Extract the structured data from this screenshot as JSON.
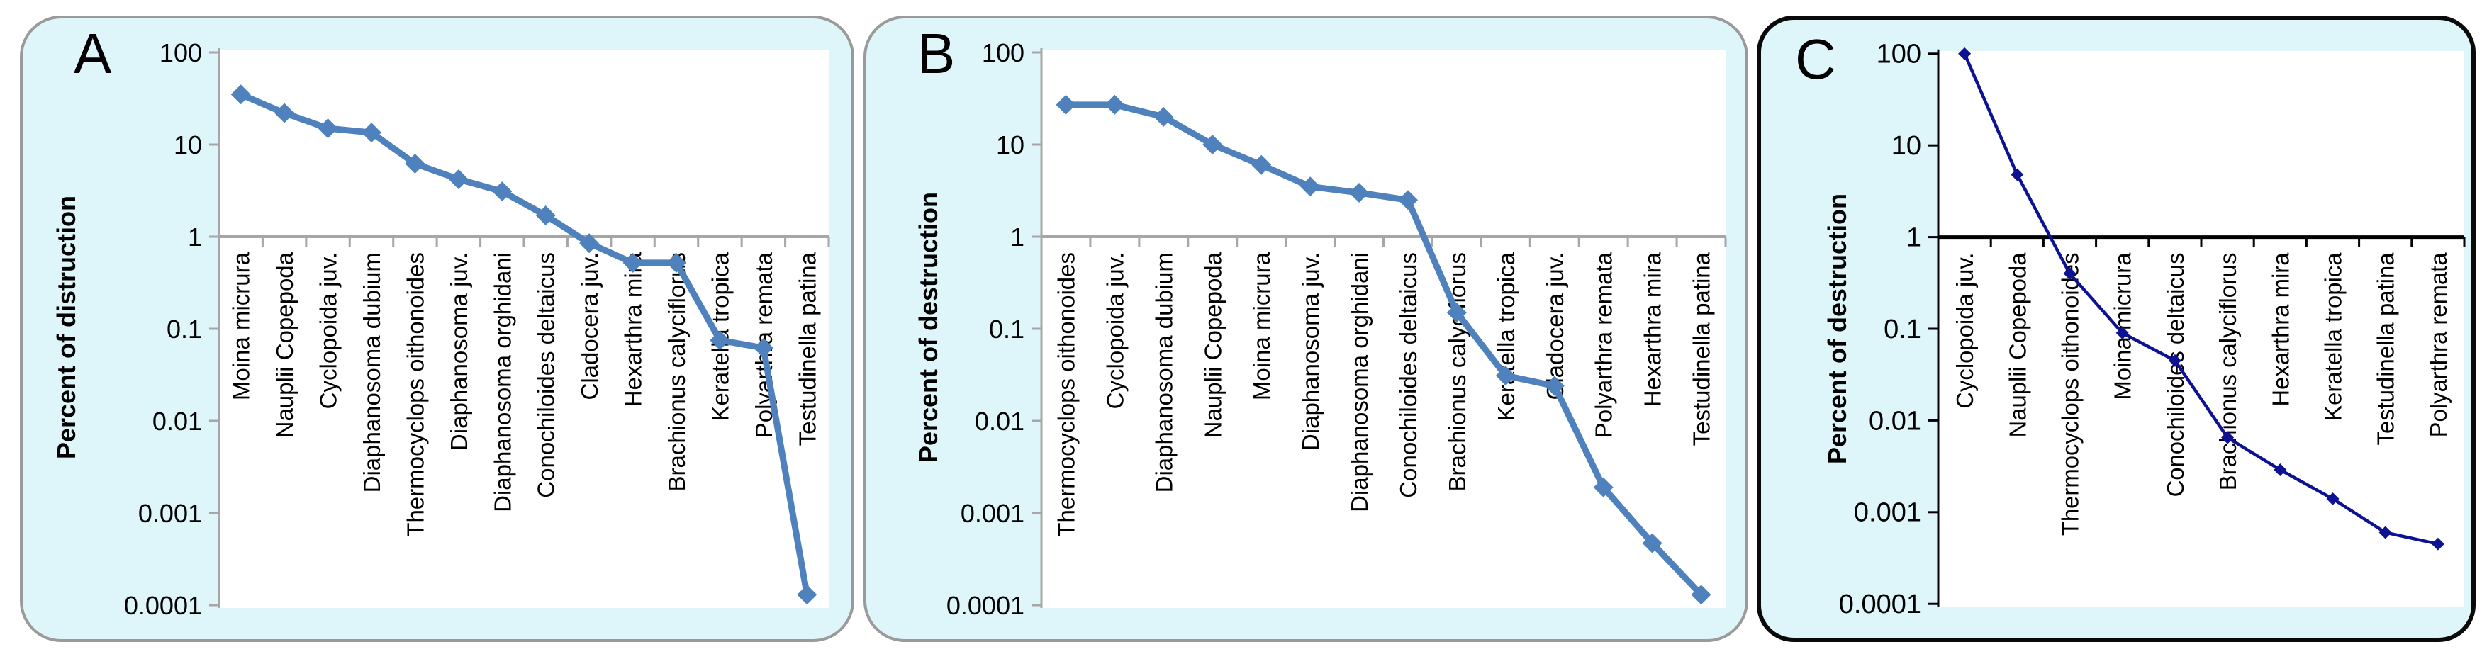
{
  "figure": {
    "background": "#ffffff",
    "panel_background": "#def6f9",
    "panel_border_ab": "#9a9a9a",
    "panel_border_c": "#0a0a0a"
  },
  "chart_data": [
    {
      "type": "line",
      "panel_label": "A",
      "ylabel": "Percent of distruction",
      "yscale": "log",
      "ylim": [
        0.0001,
        100
      ],
      "ytick_labels": [
        "100",
        "10",
        "1",
        "0.1",
        "0.01",
        "0.001",
        "0.0001"
      ],
      "grid": false,
      "legend": "none",
      "categories": [
        "Moina micrura",
        "Nauplii Copepoda",
        "Cyclopoida juv.",
        "Diaphanosoma dubium",
        "Thermocyclops oithonoides",
        "Diaphanosoma juv.",
        "Diaphanosoma orghidani",
        "Conochiloides deltaicus",
        "Cladocera juv.",
        "Hexarthra mira",
        "Brachionus calyciflorus",
        "Keratella tropica",
        "Polyarthra remata",
        "Testudinella patina"
      ],
      "values": [
        35,
        22,
        15,
        13.5,
        6.2,
        4.2,
        3.1,
        1.7,
        0.85,
        0.52,
        0.52,
        0.075,
        0.062,
        0.00013
      ],
      "line_color": "#4F81BD",
      "marker": "diamond",
      "marker_color": "#4F81BD",
      "axis_color": "#a6a6a6",
      "plot_background": "#ffffff",
      "text_color": "#000000"
    },
    {
      "type": "line",
      "panel_label": "B",
      "ylabel": "Percent of destruction",
      "yscale": "log",
      "ylim": [
        0.0001,
        100
      ],
      "ytick_labels": [
        "100",
        "10",
        "1",
        "0.1",
        "0.01",
        "0.001",
        "0.0001"
      ],
      "grid": false,
      "legend": "none",
      "categories": [
        "Thermocyclops oithonoides",
        "Cyclopoida juv.",
        "Diaphanosoma dubium",
        "Nauplii Copepoda",
        "Moina micrura",
        "Diaphanosoma juv.",
        "Diaphanosoma orghidani",
        "Conochiloides deltaicus",
        "Brachionus calyciflorus",
        "Keratella tropica",
        "Cladocera juv.",
        "Polyarthra remata",
        "Hexarthra mira",
        "Testudinella patina"
      ],
      "values": [
        27,
        27,
        20,
        10,
        6,
        3.5,
        3.0,
        2.5,
        0.15,
        0.031,
        0.024,
        0.0019,
        0.00047,
        0.00013
      ],
      "line_color": "#4F81BD",
      "marker": "diamond",
      "marker_color": "#4F81BD",
      "axis_color": "#a6a6a6",
      "plot_background": "#ffffff",
      "text_color": "#000000"
    },
    {
      "type": "line",
      "panel_label": "C",
      "ylabel": "Percent of destruction",
      "yscale": "log",
      "ylim": [
        0.0001,
        100
      ],
      "ytick_labels": [
        "100",
        "10",
        "1",
        "0.1",
        "0.01",
        "0.001",
        "0.0001"
      ],
      "grid": false,
      "legend": "none",
      "categories": [
        "Cyclopoida juv.",
        "Nauplii Copepoda",
        "Thermocyclops oithonoides",
        "Moina micrura",
        "Conochiloides deltaicus",
        "Brachionus calyciflorus",
        "Hexarthra mira",
        "Keratella tropica",
        "Testudinella patina",
        "Polyarthra remata"
      ],
      "values": [
        100,
        4.8,
        0.4,
        0.09,
        0.045,
        0.0065,
        0.0029,
        0.0014,
        0.0006,
        0.00045
      ],
      "line_color": "#0d1293",
      "marker": "diamond",
      "marker_color": "#0d1293",
      "axis_color": "#000000",
      "plot_background": "#ffffff",
      "text_color": "#000000"
    }
  ]
}
